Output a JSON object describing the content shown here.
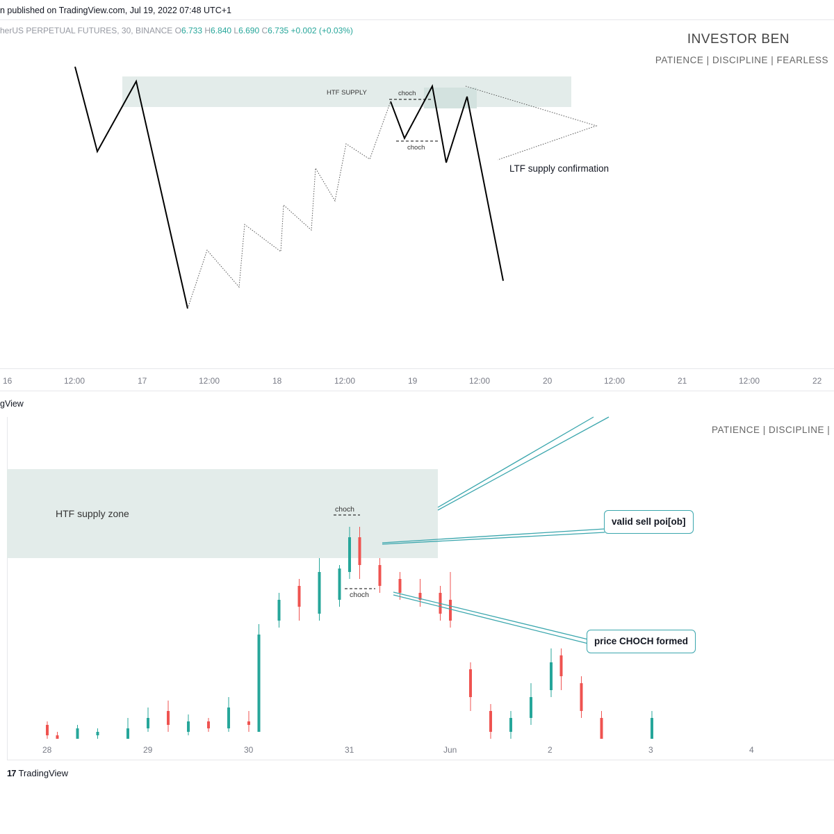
{
  "header": {
    "published": "n published on TradingView.com, Jul 19, 2022 07:48 UTC+1",
    "symbol": "herUS PERPETUAL FUTURES, 30, BINANCE",
    "ohlc": {
      "o_label": "O",
      "o": "6.733",
      "h_label": "H",
      "h": "6.840",
      "l_label": "L",
      "l": "6.690",
      "c_label": "C",
      "c": "6.735",
      "change": "+0.002 (+0.03%)"
    }
  },
  "brand": {
    "title": "INVESTOR BEN",
    "motto": "PATIENCE  |  DISCIPLINE  |  FEARLESS",
    "motto_partial": "PATIENCE  |  DISCIPLINE  |"
  },
  "top_chart": {
    "zone_label": "HTF SUPPLY",
    "choch_upper": "choch",
    "choch_lower": "choch",
    "annotation": "LTF supply confirmation",
    "x_axis": [
      "16",
      "12:00",
      "17",
      "12:00",
      "18",
      "12:00",
      "19",
      "12:00",
      "20",
      "12:00",
      "21",
      "12:00",
      "22"
    ]
  },
  "bottom_chart": {
    "partial_label": "gView",
    "zone_label": "HTF supply zone",
    "choch_upper": "choch",
    "choch_lower": "choch",
    "callout_sell": "valid sell poi[ob]",
    "callout_choch": "price CHOCH formed",
    "x_axis": [
      "28",
      "29",
      "30",
      "31",
      "Jun",
      "2",
      "3",
      "4"
    ]
  },
  "footer": {
    "logo_mark": "17",
    "logo_text": "TradingView"
  },
  "colors": {
    "bull": "#26a69a",
    "bear": "#ef5350",
    "zone": "#e3ecea",
    "callout_border": "#3aa6ad",
    "line": "#000000"
  },
  "chart_data": [
    {
      "type": "line",
      "title": "",
      "xlabel": "",
      "ylabel": "",
      "x_ticks": [
        "16",
        "12:00",
        "17",
        "12:00",
        "18",
        "12:00",
        "19",
        "12:00",
        "20",
        "12:00",
        "21",
        "12:00",
        "22"
      ],
      "series": [
        {
          "style": "solid",
          "points": [
            [
              16.05,
              95
            ],
            [
              16.38,
              28
            ],
            [
              16.69,
              90
            ],
            [
              17.33,
              0
            ]
          ]
        },
        {
          "style": "dotted",
          "points": [
            [
              17.33,
              0
            ],
            [
              17.55,
              24
            ],
            [
              17.72,
              9
            ],
            [
              17.9,
              34
            ],
            [
              18.03,
              23
            ],
            [
              18.15,
              43
            ],
            [
              18.23,
              32
            ],
            [
              18.37,
              57
            ],
            [
              18.43,
              45
            ],
            [
              18.54,
              67
            ],
            [
              18.63,
              61
            ],
            [
              18.72,
              86
            ]
          ]
        },
        {
          "style": "solid",
          "points": [
            [
              18.72,
              86
            ],
            [
              18.82,
              71
            ],
            [
              19.13,
              90
            ],
            [
              19.23,
              61
            ],
            [
              19.4,
              86
            ],
            [
              19.65,
              7
            ]
          ]
        },
        {
          "style": "dotted",
          "points": [
            [
              19.38,
              91
            ],
            [
              19.85,
              77
            ],
            [
              19.12,
              63
            ]
          ]
        }
      ],
      "zones": [
        {
          "label": "HTF SUPPLY",
          "x": [
            16.68,
            18.92
          ],
          "y": [
            81,
            94
          ]
        }
      ],
      "annotations": [
        "HTF SUPPLY",
        "choch",
        "choch",
        "LTF supply confirmation"
      ]
    },
    {
      "type": "candlestick",
      "title": "",
      "xlabel": "",
      "ylabel": "",
      "x_ticks": [
        "28",
        "29",
        "30",
        "31",
        "Jun",
        "2",
        "3",
        "4"
      ],
      "series": [
        {
          "name": "",
          "values": [
            [
              28.0,
              4,
              1,
              5,
              0
            ],
            [
              28.1,
              1,
              0,
              2,
              0
            ],
            [
              28.3,
              0,
              3,
              4,
              0
            ],
            [
              28.5,
              1,
              2,
              3,
              0
            ],
            [
              28.8,
              0,
              3,
              6,
              0
            ],
            [
              29.0,
              3,
              6,
              9,
              2
            ],
            [
              29.2,
              8,
              4,
              11,
              2
            ],
            [
              29.4,
              2,
              5,
              7,
              1
            ],
            [
              29.6,
              5,
              3,
              6,
              2
            ],
            [
              29.8,
              3,
              9,
              12,
              2
            ],
            [
              30.0,
              5,
              4,
              8,
              2
            ],
            [
              30.1,
              2,
              30,
              33,
              2
            ],
            [
              30.3,
              34,
              40,
              42,
              32
            ],
            [
              30.5,
              44,
              38,
              46,
              34
            ],
            [
              30.7,
              36,
              48,
              52,
              34
            ],
            [
              30.9,
              40,
              49,
              50,
              38
            ],
            [
              31.0,
              48,
              58,
              61,
              46
            ],
            [
              31.1,
              58,
              50,
              61,
              46
            ],
            [
              31.3,
              50,
              44,
              52,
              42
            ],
            [
              31.5,
              46,
              42,
              48,
              40
            ],
            [
              31.7,
              42,
              40,
              46,
              38
            ],
            [
              31.9,
              42,
              36,
              44,
              34
            ],
            [
              32.0,
              40,
              34,
              48,
              32
            ],
            [
              32.2,
              20,
              12,
              22,
              8
            ],
            [
              32.4,
              8,
              2,
              10,
              0
            ],
            [
              32.6,
              2,
              6,
              8,
              0
            ],
            [
              32.8,
              6,
              12,
              16,
              4
            ],
            [
              33.0,
              14,
              22,
              26,
              12
            ],
            [
              33.1,
              24,
              18,
              26,
              14
            ],
            [
              33.3,
              16,
              8,
              18,
              6
            ],
            [
              33.5,
              6,
              0,
              8,
              0
            ],
            [
              34.0,
              0,
              6,
              8,
              0
            ]
          ]
        }
      ],
      "zones": [
        {
          "label": "HTF supply zone",
          "x": [
            27.6,
            31.8
          ],
          "y": [
            49,
            62
          ]
        }
      ],
      "annotations": [
        "choch",
        "choch",
        "valid sell poi[ob]",
        "price CHOCH formed"
      ]
    }
  ]
}
